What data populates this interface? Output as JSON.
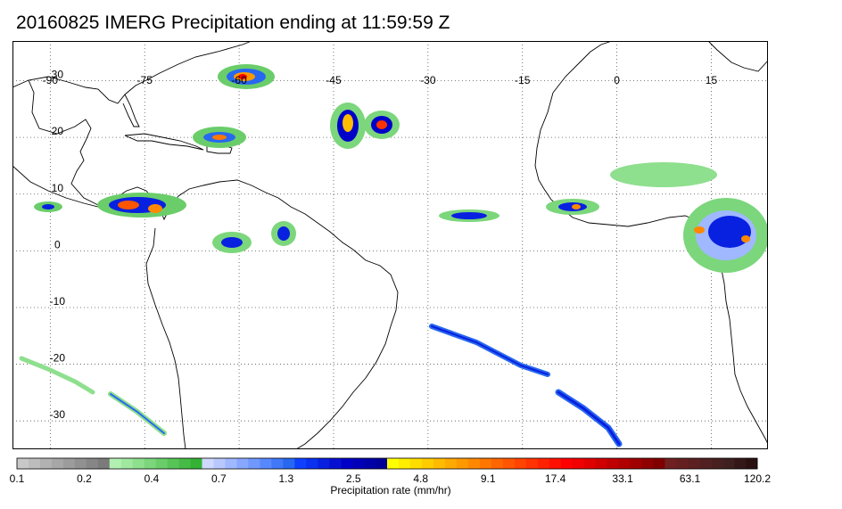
{
  "title": "20160825 IMERG Precipitation ending at 11:59:59 Z",
  "map": {
    "lon_labels": [
      "-90",
      "-75",
      "-60",
      "-45",
      "-30",
      "-15",
      "0",
      "15"
    ],
    "lon_values": [
      -90,
      -75,
      -60,
      -45,
      -30,
      -15,
      0,
      15
    ],
    "lat_labels": [
      "30",
      "20",
      "10",
      "0",
      "-10",
      "-20",
      "-30"
    ],
    "lat_values": [
      30,
      20,
      10,
      0,
      -10,
      -20,
      -30
    ],
    "lon_range": [
      -96,
      24
    ],
    "lat_range": [
      37,
      -35
    ],
    "grid": "dotted",
    "colors": {
      "coast": "#000000",
      "grid": "#555555",
      "frame": "#000000"
    }
  },
  "colorbar": {
    "label": "Precipitation rate (mm/hr)",
    "tick_labels": [
      "0.1",
      "0.2",
      "0.4",
      "0.7",
      "1.3",
      "2.5",
      "4.8",
      "9.1",
      "17.4",
      "33.1",
      "63.1",
      "120.2"
    ],
    "colors": [
      "#c8c8c8",
      "#bdbdbd",
      "#b2b2b2",
      "#a7a7a7",
      "#9c9c9c",
      "#919191",
      "#868686",
      "#7b7b7b",
      "#b2f0b2",
      "#a0e8a0",
      "#8edf8e",
      "#7cd67c",
      "#6acd6a",
      "#58c458",
      "#46bb46",
      "#34b234",
      "#cfd8ff",
      "#b8c8ff",
      "#a0b8ff",
      "#88a8ff",
      "#7098ff",
      "#5888ff",
      "#4078f8",
      "#2868f0",
      "#1040ff",
      "#0a30f0",
      "#0820e0",
      "#0610d0",
      "#0000c8",
      "#0000b8",
      "#0000a8",
      "#000098",
      "#ffff00",
      "#ffee00",
      "#ffdd00",
      "#ffcc00",
      "#ffbb00",
      "#ffaa00",
      "#ff9900",
      "#ff8800",
      "#ff7700",
      "#ff6600",
      "#ff5500",
      "#ff4400",
      "#ff3300",
      "#ff2200",
      "#ff1100",
      "#ff0000",
      "#f00000",
      "#e00000",
      "#d00000",
      "#c00000",
      "#b00000",
      "#a00000",
      "#900000",
      "#800000",
      "#702020",
      "#662020",
      "#5c2020",
      "#522020",
      "#482020",
      "#3e2020",
      "#341818",
      "#2a1010"
    ]
  }
}
